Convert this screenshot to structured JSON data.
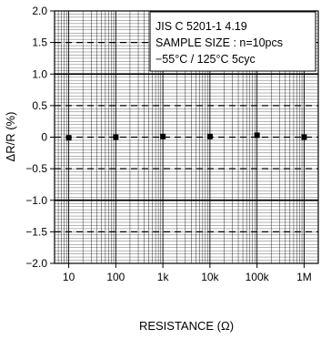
{
  "chart_data": {
    "type": "scatter",
    "title": "",
    "xlabel": "RESISTANCE (Ω)",
    "ylabel": "ΔR/R (%)",
    "x_scale": "log",
    "xlim": [
      5,
      2000000
    ],
    "ylim": [
      -2.0,
      2.0
    ],
    "x_ticks": [
      {
        "value": 10,
        "label": "10"
      },
      {
        "value": 100,
        "label": "100"
      },
      {
        "value": 1000,
        "label": "1k"
      },
      {
        "value": 10000,
        "label": "10k"
      },
      {
        "value": 100000,
        "label": "100k"
      },
      {
        "value": 1000000,
        "label": "1M"
      }
    ],
    "y_ticks": [
      {
        "value": 2.0,
        "label": "2.0"
      },
      {
        "value": 1.5,
        "label": "1.5"
      },
      {
        "value": 1.0,
        "label": "1.0"
      },
      {
        "value": 0.5,
        "label": "0.5"
      },
      {
        "value": 0,
        "label": "0"
      },
      {
        "value": -0.5,
        "label": "−0.5"
      },
      {
        "value": -1.0,
        "label": "−1.0"
      },
      {
        "value": -1.5,
        "label": "−1.5"
      },
      {
        "value": -2.0,
        "label": "−2.0"
      }
    ],
    "reference_lines": [
      {
        "y": 1.0,
        "style": "solid"
      },
      {
        "y": -1.0,
        "style": "solid"
      },
      {
        "y": 1.5,
        "style": "dashed"
      },
      {
        "y": 0.5,
        "style": "dashed"
      },
      {
        "y": 0,
        "style": "dashed"
      },
      {
        "y": -0.5,
        "style": "dashed"
      },
      {
        "y": -1.5,
        "style": "dashed"
      }
    ],
    "grid": true,
    "minor_grid_step": 0.05,
    "points": [
      {
        "x": 10,
        "y": -0.01,
        "spread": 0.02
      },
      {
        "x": 100,
        "y": 0.0,
        "spread": 0.02
      },
      {
        "x": 1000,
        "y": 0.01,
        "spread": 0.03
      },
      {
        "x": 10000,
        "y": 0.01,
        "spread": 0.04
      },
      {
        "x": 100000,
        "y": 0.03,
        "spread": 0.04
      },
      {
        "x": 1000000,
        "y": 0.0,
        "spread": 0.02
      }
    ],
    "annotation": [
      "JIS C 5201-1 4.19",
      "SAMPLE SIZE : n=10pcs",
      "−55°C / 125°C 5cyc"
    ],
    "colors": {
      "ink": "#000000",
      "grid": "#000000",
      "background": "#ffffff"
    }
  }
}
